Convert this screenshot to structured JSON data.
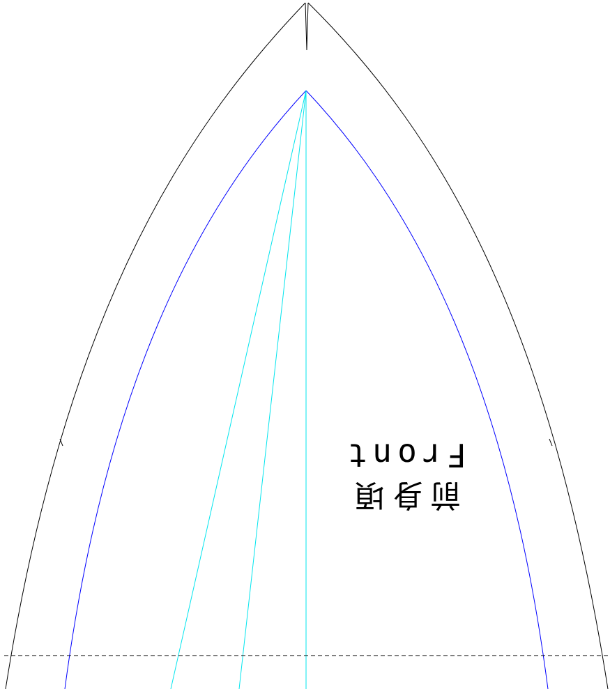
{
  "labels": {
    "english": "Front",
    "japanese": "前身頃"
  },
  "colors": {
    "background": "#ffffff",
    "outer_outline": "#000000",
    "inner_outline": "#0000ff",
    "guide_lines": "#00e5ee",
    "center_fold_line": "#000000",
    "text": "#000000"
  }
}
